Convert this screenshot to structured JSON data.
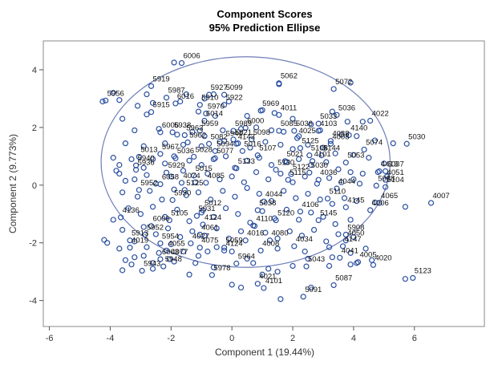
{
  "chart_data": {
    "type": "scatter",
    "title": "Component Scores",
    "subtitle": "95% Prediction Ellipse",
    "xlabel": "Component 1 (19.44%)",
    "ylabel": "Component 2 (9.773%)",
    "xlim": [
      -6.2,
      8.3
    ],
    "ylim": [
      -4.9,
      5.0
    ],
    "x_ticks": [
      -6,
      -4,
      -2,
      0,
      2,
      4,
      6
    ],
    "y_ticks": [
      -4,
      -2,
      0,
      2,
      4
    ],
    "ellipse": {
      "cx": 0.45,
      "cy": 0.8,
      "rx": 4.75,
      "ry": 3.65
    },
    "marker_color": "#2a4fa0",
    "ellipse_color": "#6f7fb8",
    "labeled_points": [
      {
        "label": "6006",
        "x": -1.6,
        "y": 4.4
      },
      {
        "label": "5919",
        "x": -2.6,
        "y": 3.6
      },
      {
        "label": "5062",
        "x": 1.6,
        "y": 3.7
      },
      {
        "label": "5072",
        "x": 3.4,
        "y": 3.5
      },
      {
        "label": "5987",
        "x": -2.1,
        "y": 3.2
      },
      {
        "label": "5927",
        "x": -0.7,
        "y": 3.3
      },
      {
        "label": "5099",
        "x": -0.2,
        "y": 3.3
      },
      {
        "label": "5956",
        "x": -4.1,
        "y": 3.1
      },
      {
        "label": "6016",
        "x": -1.8,
        "y": 3.0
      },
      {
        "label": "5910",
        "x": -1.0,
        "y": 2.95
      },
      {
        "label": "5922",
        "x": -0.2,
        "y": 2.95
      },
      {
        "label": "5915",
        "x": -2.6,
        "y": 2.7
      },
      {
        "label": "5970",
        "x": -0.8,
        "y": 2.65
      },
      {
        "label": "5969",
        "x": 1.0,
        "y": 2.75
      },
      {
        "label": "4011",
        "x": 1.6,
        "y": 2.6
      },
      {
        "label": "5036",
        "x": 3.5,
        "y": 2.6
      },
      {
        "label": "6014",
        "x": -0.85,
        "y": 2.4
      },
      {
        "label": "4022",
        "x": 4.6,
        "y": 2.4
      },
      {
        "label": "6000",
        "x": 0.5,
        "y": 2.15
      },
      {
        "label": "5033",
        "x": 2.9,
        "y": 2.3
      },
      {
        "label": "6006",
        "x": -2.3,
        "y": 2.0
      },
      {
        "label": "5938",
        "x": -1.9,
        "y": 2.0
      },
      {
        "label": "5959",
        "x": -1.0,
        "y": 2.05
      },
      {
        "label": "5989",
        "x": 0.1,
        "y": 2.05
      },
      {
        "label": "5085",
        "x": 1.6,
        "y": 2.05
      },
      {
        "label": "5036",
        "x": 2.1,
        "y": 2.05
      },
      {
        "label": "4103",
        "x": 2.9,
        "y": 2.05
      },
      {
        "label": "5963",
        "x": -1.5,
        "y": 1.9
      },
      {
        "label": "4025",
        "x": 2.2,
        "y": 1.8
      },
      {
        "label": "4140",
        "x": 3.9,
        "y": 1.9
      },
      {
        "label": "4088",
        "x": 3.3,
        "y": 1.7
      },
      {
        "label": "4008",
        "x": 3.3,
        "y": 1.6
      },
      {
        "label": "5030",
        "x": 5.8,
        "y": 1.6
      },
      {
        "label": "5021",
        "x": 0.1,
        "y": 1.75
      },
      {
        "label": "5944",
        "x": -0.2,
        "y": 1.7
      },
      {
        "label": "5962",
        "x": -1.4,
        "y": 1.65
      },
      {
        "label": "5082",
        "x": -0.7,
        "y": 1.6
      },
      {
        "label": "4143",
        "x": 0.2,
        "y": 1.6
      },
      {
        "label": "5125",
        "x": 2.3,
        "y": 1.45
      },
      {
        "label": "5098",
        "x": 0.7,
        "y": 1.75
      },
      {
        "label": "5074",
        "x": 4.4,
        "y": 1.4
      },
      {
        "label": "5094",
        "x": -0.5,
        "y": 1.35
      },
      {
        "label": "5016",
        "x": 0.4,
        "y": 1.35
      },
      {
        "label": "5967",
        "x": -2.3,
        "y": 1.25
      },
      {
        "label": "5013",
        "x": -3.0,
        "y": 1.15
      },
      {
        "label": "5036",
        "x": -1.8,
        "y": 1.1
      },
      {
        "label": "5028",
        "x": -1.2,
        "y": 1.15
      },
      {
        "label": "5077",
        "x": -0.5,
        "y": 1.1
      },
      {
        "label": "5107",
        "x": 0.9,
        "y": 1.2
      },
      {
        "label": "5021",
        "x": 1.8,
        "y": 1.0
      },
      {
        "label": "5108",
        "x": 2.6,
        "y": 1.2
      },
      {
        "label": "5144",
        "x": 3.0,
        "y": 1.2
      },
      {
        "label": "4101",
        "x": 2.7,
        "y": 1.0
      },
      {
        "label": "5053",
        "x": 3.8,
        "y": 0.95
      },
      {
        "label": "5940",
        "x": -3.1,
        "y": 0.85
      },
      {
        "label": "5936",
        "x": -3.1,
        "y": 0.7
      },
      {
        "label": "5929",
        "x": -2.1,
        "y": 0.6
      },
      {
        "label": "5015",
        "x": -1.2,
        "y": 0.5
      },
      {
        "label": "5133",
        "x": 0.2,
        "y": 0.75
      },
      {
        "label": "5130",
        "x": 1.5,
        "y": 0.7
      },
      {
        "label": "5122",
        "x": 2.0,
        "y": 0.55
      },
      {
        "label": "5030",
        "x": 2.6,
        "y": 0.6
      },
      {
        "label": "4413",
        "x": 4.9,
        "y": 0.65
      },
      {
        "label": "5037",
        "x": 5.1,
        "y": 0.65
      },
      {
        "label": "6058",
        "x": -2.3,
        "y": 0.2
      },
      {
        "label": "4074",
        "x": -1.6,
        "y": 0.25
      },
      {
        "label": "4085",
        "x": -0.8,
        "y": 0.25
      },
      {
        "label": "5115",
        "x": 1.9,
        "y": 0.35
      },
      {
        "label": "4036",
        "x": 2.9,
        "y": 0.35
      },
      {
        "label": "4051",
        "x": 5.1,
        "y": 0.35
      },
      {
        "label": "5058",
        "x": 4.8,
        "y": 0.15
      },
      {
        "label": "5104",
        "x": 5.1,
        "y": 0.1
      },
      {
        "label": "5952",
        "x": -3.0,
        "y": 0.0
      },
      {
        "label": "5125",
        "x": -1.5,
        "y": 0.0
      },
      {
        "label": "4044",
        "x": 3.5,
        "y": 0.05
      },
      {
        "label": "5930",
        "x": -1.9,
        "y": -0.35
      },
      {
        "label": "5110",
        "x": 3.2,
        "y": -0.3
      },
      {
        "label": "4044",
        "x": 1.1,
        "y": -0.4
      },
      {
        "label": "4065",
        "x": 4.9,
        "y": -0.45
      },
      {
        "label": "4007",
        "x": 6.6,
        "y": -0.45
      },
      {
        "label": "4145",
        "x": 3.8,
        "y": -0.6
      },
      {
        "label": "4006",
        "x": 4.6,
        "y": -0.7
      },
      {
        "label": "5012",
        "x": -0.9,
        "y": -0.7
      },
      {
        "label": "5038",
        "x": 0.9,
        "y": -0.7
      },
      {
        "label": "4106",
        "x": 2.3,
        "y": -0.75
      },
      {
        "label": "4136",
        "x": -3.6,
        "y": -0.95
      },
      {
        "label": "5031",
        "x": -1.1,
        "y": -0.9
      },
      {
        "label": "5105",
        "x": -2.0,
        "y": -1.05
      },
      {
        "label": "5120",
        "x": 1.5,
        "y": -1.05
      },
      {
        "label": "5145",
        "x": 2.9,
        "y": -1.05
      },
      {
        "label": "6000",
        "x": -2.6,
        "y": -1.25
      },
      {
        "label": "4124",
        "x": -0.9,
        "y": -1.2
      },
      {
        "label": "4110",
        "x": 0.8,
        "y": -1.25
      },
      {
        "label": "5952",
        "x": -2.8,
        "y": -1.55
      },
      {
        "label": "4061",
        "x": -1.0,
        "y": -1.55
      },
      {
        "label": "5908",
        "x": 3.8,
        "y": -1.55
      },
      {
        "label": "4080",
        "x": 1.3,
        "y": -1.75
      },
      {
        "label": "4050",
        "x": 3.8,
        "y": -1.75
      },
      {
        "label": "5913",
        "x": -3.3,
        "y": -1.75
      },
      {
        "label": "5954",
        "x": -2.3,
        "y": -1.85
      },
      {
        "label": "4027",
        "x": -1.3,
        "y": -1.85
      },
      {
        "label": "4016",
        "x": 0.5,
        "y": -1.75
      },
      {
        "label": "4034",
        "x": 2.1,
        "y": -1.95
      },
      {
        "label": "4147",
        "x": 3.7,
        "y": -1.95
      },
      {
        "label": "4019",
        "x": -3.3,
        "y": -2.0
      },
      {
        "label": "4075",
        "x": -1.0,
        "y": -2.0
      },
      {
        "label": "5059",
        "x": -0.2,
        "y": -2.0
      },
      {
        "label": "4008",
        "x": 1.0,
        "y": -2.1
      },
      {
        "label": "4055",
        "x": -2.1,
        "y": -2.1
      },
      {
        "label": "4124",
        "x": -0.2,
        "y": -2.1
      },
      {
        "label": "4041",
        "x": 3.6,
        "y": -2.35
      },
      {
        "label": "6003",
        "x": -2.3,
        "y": -2.4
      },
      {
        "label": "4077",
        "x": -2.0,
        "y": -2.4
      },
      {
        "label": "5964",
        "x": 0.2,
        "y": -2.55
      },
      {
        "label": "4005",
        "x": 4.2,
        "y": -2.5
      },
      {
        "label": "4020",
        "x": 4.7,
        "y": -2.6
      },
      {
        "label": "5948",
        "x": -2.2,
        "y": -2.65
      },
      {
        "label": "5043",
        "x": 2.5,
        "y": -2.65
      },
      {
        "label": "5943",
        "x": -2.9,
        "y": -2.8
      },
      {
        "label": "5978",
        "x": -0.6,
        "y": -2.95
      },
      {
        "label": "5123",
        "x": 6.0,
        "y": -3.05
      },
      {
        "label": "4021",
        "x": 0.9,
        "y": -3.25
      },
      {
        "label": "4101",
        "x": 1.1,
        "y": -3.4
      },
      {
        "label": "5087",
        "x": 3.4,
        "y": -3.3
      },
      {
        "label": "5091",
        "x": 2.4,
        "y": -3.7
      }
    ],
    "points": [
      [
        -1.9,
        4.25
      ],
      [
        1.55,
        3.5
      ],
      [
        3.9,
        3.55
      ],
      [
        -4.25,
        2.9
      ],
      [
        -3.7,
        2.95
      ],
      [
        -3.9,
        3.2
      ],
      [
        -2.8,
        3.15
      ],
      [
        -2.6,
        2.85
      ],
      [
        -1.5,
        3.15
      ],
      [
        -1.7,
        2.9
      ],
      [
        -0.9,
        3.0
      ],
      [
        -0.6,
        3.15
      ],
      [
        -0.1,
        2.9
      ],
      [
        1.0,
        2.6
      ],
      [
        1.4,
        2.5
      ],
      [
        3.3,
        2.55
      ],
      [
        3.8,
        2.2
      ],
      [
        4.3,
        2.2
      ],
      [
        -3.1,
        2.75
      ],
      [
        -2.8,
        2.45
      ],
      [
        -1.1,
        2.55
      ],
      [
        -0.55,
        2.4
      ],
      [
        0.5,
        2.4
      ],
      [
        2.0,
        2.3
      ],
      [
        2.6,
        2.1
      ],
      [
        2.9,
        1.9
      ],
      [
        3.6,
        1.75
      ],
      [
        4.1,
        1.7
      ],
      [
        4.7,
        1.55
      ],
      [
        5.3,
        1.45
      ],
      [
        -3.6,
        2.3
      ],
      [
        -3.2,
        1.9
      ],
      [
        -2.4,
        1.95
      ],
      [
        -1.8,
        1.75
      ],
      [
        -1.3,
        1.85
      ],
      [
        -0.9,
        1.7
      ],
      [
        -0.3,
        1.9
      ],
      [
        0.3,
        1.95
      ],
      [
        0.8,
        2.0
      ],
      [
        1.3,
        1.9
      ],
      [
        1.7,
        1.85
      ],
      [
        2.2,
        1.7
      ],
      [
        -3.5,
        1.45
      ],
      [
        -2.9,
        1.35
      ],
      [
        -2.2,
        1.45
      ],
      [
        -1.6,
        1.4
      ],
      [
        -1.0,
        1.35
      ],
      [
        -0.4,
        1.5
      ],
      [
        0.2,
        1.45
      ],
      [
        0.6,
        1.3
      ],
      [
        1.1,
        1.5
      ],
      [
        1.6,
        1.4
      ],
      [
        2.0,
        1.25
      ],
      [
        2.5,
        1.4
      ],
      [
        3.0,
        1.3
      ],
      [
        3.4,
        1.1
      ],
      [
        4.0,
        1.05
      ],
      [
        4.5,
        0.95
      ],
      [
        5.0,
        0.75
      ],
      [
        -3.9,
        0.95
      ],
      [
        -3.7,
        0.7
      ],
      [
        -3.8,
        0.5
      ],
      [
        -3.5,
        0.15
      ],
      [
        -3.3,
        0.9
      ],
      [
        -2.9,
        0.6
      ],
      [
        -2.6,
        0.9
      ],
      [
        -2.2,
        0.75
      ],
      [
        -1.9,
        1.0
      ],
      [
        -1.4,
        0.85
      ],
      [
        -1.0,
        0.7
      ],
      [
        -0.6,
        0.9
      ],
      [
        -0.2,
        1.0
      ],
      [
        0.1,
        0.6
      ],
      [
        0.5,
        0.85
      ],
      [
        0.9,
        0.95
      ],
      [
        1.3,
        0.7
      ],
      [
        1.8,
        0.8
      ],
      [
        2.2,
        0.9
      ],
      [
        2.6,
        0.7
      ],
      [
        3.1,
        0.8
      ],
      [
        3.5,
        0.55
      ],
      [
        3.9,
        0.45
      ],
      [
        4.3,
        0.4
      ],
      [
        4.8,
        0.45
      ],
      [
        5.1,
        0.3
      ],
      [
        -3.7,
        0.4
      ],
      [
        -3.2,
        0.2
      ],
      [
        -2.8,
        0.35
      ],
      [
        -2.5,
        0.05
      ],
      [
        -2.0,
        0.3
      ],
      [
        -1.6,
        0.5
      ],
      [
        -1.2,
        0.1
      ],
      [
        -0.8,
        0.4
      ],
      [
        -0.4,
        0.2
      ],
      [
        0.0,
        0.3
      ],
      [
        0.4,
        0.1
      ],
      [
        0.8,
        0.45
      ],
      [
        1.2,
        0.2
      ],
      [
        1.6,
        0.4
      ],
      [
        2.0,
        0.1
      ],
      [
        2.4,
        0.3
      ],
      [
        2.8,
        0.05
      ],
      [
        3.2,
        0.25
      ],
      [
        3.6,
        0.1
      ],
      [
        4.0,
        0.2
      ],
      [
        4.2,
        0.05
      ],
      [
        -3.6,
        -0.25
      ],
      [
        -3.1,
        -0.4
      ],
      [
        -2.7,
        -0.2
      ],
      [
        -2.3,
        -0.5
      ],
      [
        -1.9,
        -0.15
      ],
      [
        -1.5,
        -0.35
      ],
      [
        -1.1,
        -0.25
      ],
      [
        -0.7,
        -0.5
      ],
      [
        -0.3,
        -0.2
      ],
      [
        0.1,
        -0.4
      ],
      [
        0.5,
        -0.1
      ],
      [
        0.9,
        -0.3
      ],
      [
        1.3,
        -0.55
      ],
      [
        1.7,
        -0.2
      ],
      [
        2.1,
        -0.45
      ],
      [
        2.5,
        -0.3
      ],
      [
        2.9,
        -0.5
      ],
      [
        3.3,
        -0.65
      ],
      [
        3.7,
        -0.45
      ],
      [
        4.1,
        -0.55
      ],
      [
        4.7,
        -0.6
      ],
      [
        5.7,
        -0.75
      ],
      [
        -3.9,
        -1.2
      ],
      [
        -3.4,
        -0.8
      ],
      [
        -3.0,
        -1.0
      ],
      [
        -2.6,
        -0.75
      ],
      [
        -2.2,
        -1.1
      ],
      [
        -1.8,
        -0.85
      ],
      [
        -1.4,
        -1.25
      ],
      [
        -1.0,
        -0.95
      ],
      [
        -0.6,
        -1.1
      ],
      [
        -0.2,
        -0.8
      ],
      [
        0.2,
        -1.0
      ],
      [
        0.6,
        -1.3
      ],
      [
        1.0,
        -0.9
      ],
      [
        1.4,
        -1.15
      ],
      [
        1.8,
        -0.85
      ],
      [
        2.2,
        -1.2
      ],
      [
        2.6,
        -0.95
      ],
      [
        3.0,
        -1.1
      ],
      [
        3.4,
        -1.35
      ],
      [
        3.9,
        -1.2
      ],
      [
        -4.2,
        -1.9
      ],
      [
        -3.6,
        -1.55
      ],
      [
        -3.2,
        -1.95
      ],
      [
        -2.9,
        -1.45
      ],
      [
        -2.5,
        -1.7
      ],
      [
        -2.1,
        -1.5
      ],
      [
        -1.7,
        -1.8
      ],
      [
        -1.3,
        -1.6
      ],
      [
        -0.9,
        -1.75
      ],
      [
        -0.5,
        -1.5
      ],
      [
        -0.1,
        -1.85
      ],
      [
        0.3,
        -1.6
      ],
      [
        0.7,
        -1.4
      ],
      [
        1.1,
        -1.65
      ],
      [
        1.5,
        -1.85
      ],
      [
        1.9,
        -1.6
      ],
      [
        2.3,
        -1.75
      ],
      [
        2.7,
        -1.55
      ],
      [
        3.1,
        -1.95
      ],
      [
        3.5,
        -1.7
      ],
      [
        4.0,
        -1.8
      ],
      [
        -3.7,
        -2.2
      ],
      [
        -3.2,
        -2.5
      ],
      [
        -2.8,
        -2.15
      ],
      [
        -2.4,
        -2.35
      ],
      [
        -2.0,
        -2.05
      ],
      [
        -1.6,
        -2.3
      ],
      [
        -1.1,
        -2.45
      ],
      [
        -0.5,
        -2.15
      ],
      [
        0.0,
        -2.3
      ],
      [
        0.5,
        -2.55
      ],
      [
        1.5,
        -2.2
      ],
      [
        2.4,
        -2.3
      ],
      [
        3.2,
        -2.15
      ],
      [
        3.9,
        -2.35
      ],
      [
        4.6,
        -2.6
      ],
      [
        -3.3,
        -2.75
      ],
      [
        -2.9,
        -2.45
      ],
      [
        -2.6,
        -2.7
      ],
      [
        -1.2,
        -2.7
      ],
      [
        -0.6,
        -2.85
      ],
      [
        0.7,
        -2.7
      ],
      [
        2.5,
        -2.55
      ],
      [
        3.2,
        -2.8
      ],
      [
        4.1,
        -2.7
      ],
      [
        -4.1,
        -2.0
      ],
      [
        -3.6,
        -2.95
      ],
      [
        -3.5,
        -2.6
      ],
      [
        -1.4,
        -3.1
      ],
      [
        0.0,
        -3.45
      ],
      [
        0.3,
        -3.55
      ],
      [
        1.0,
        -3.1
      ],
      [
        1.5,
        -3.0
      ],
      [
        1.6,
        -3.95
      ],
      [
        2.6,
        -3.55
      ],
      [
        3.9,
        -2.75
      ],
      [
        5.7,
        -3.25
      ],
      [
        -0.8,
        -2.3
      ],
      [
        -1.9,
        -2.65
      ],
      [
        -2.6,
        -2.9
      ],
      [
        1.2,
        -2.9
      ],
      [
        2.0,
        -2.8
      ],
      [
        3.3,
        -2.5
      ],
      [
        4.4,
        -2.2
      ]
    ]
  }
}
